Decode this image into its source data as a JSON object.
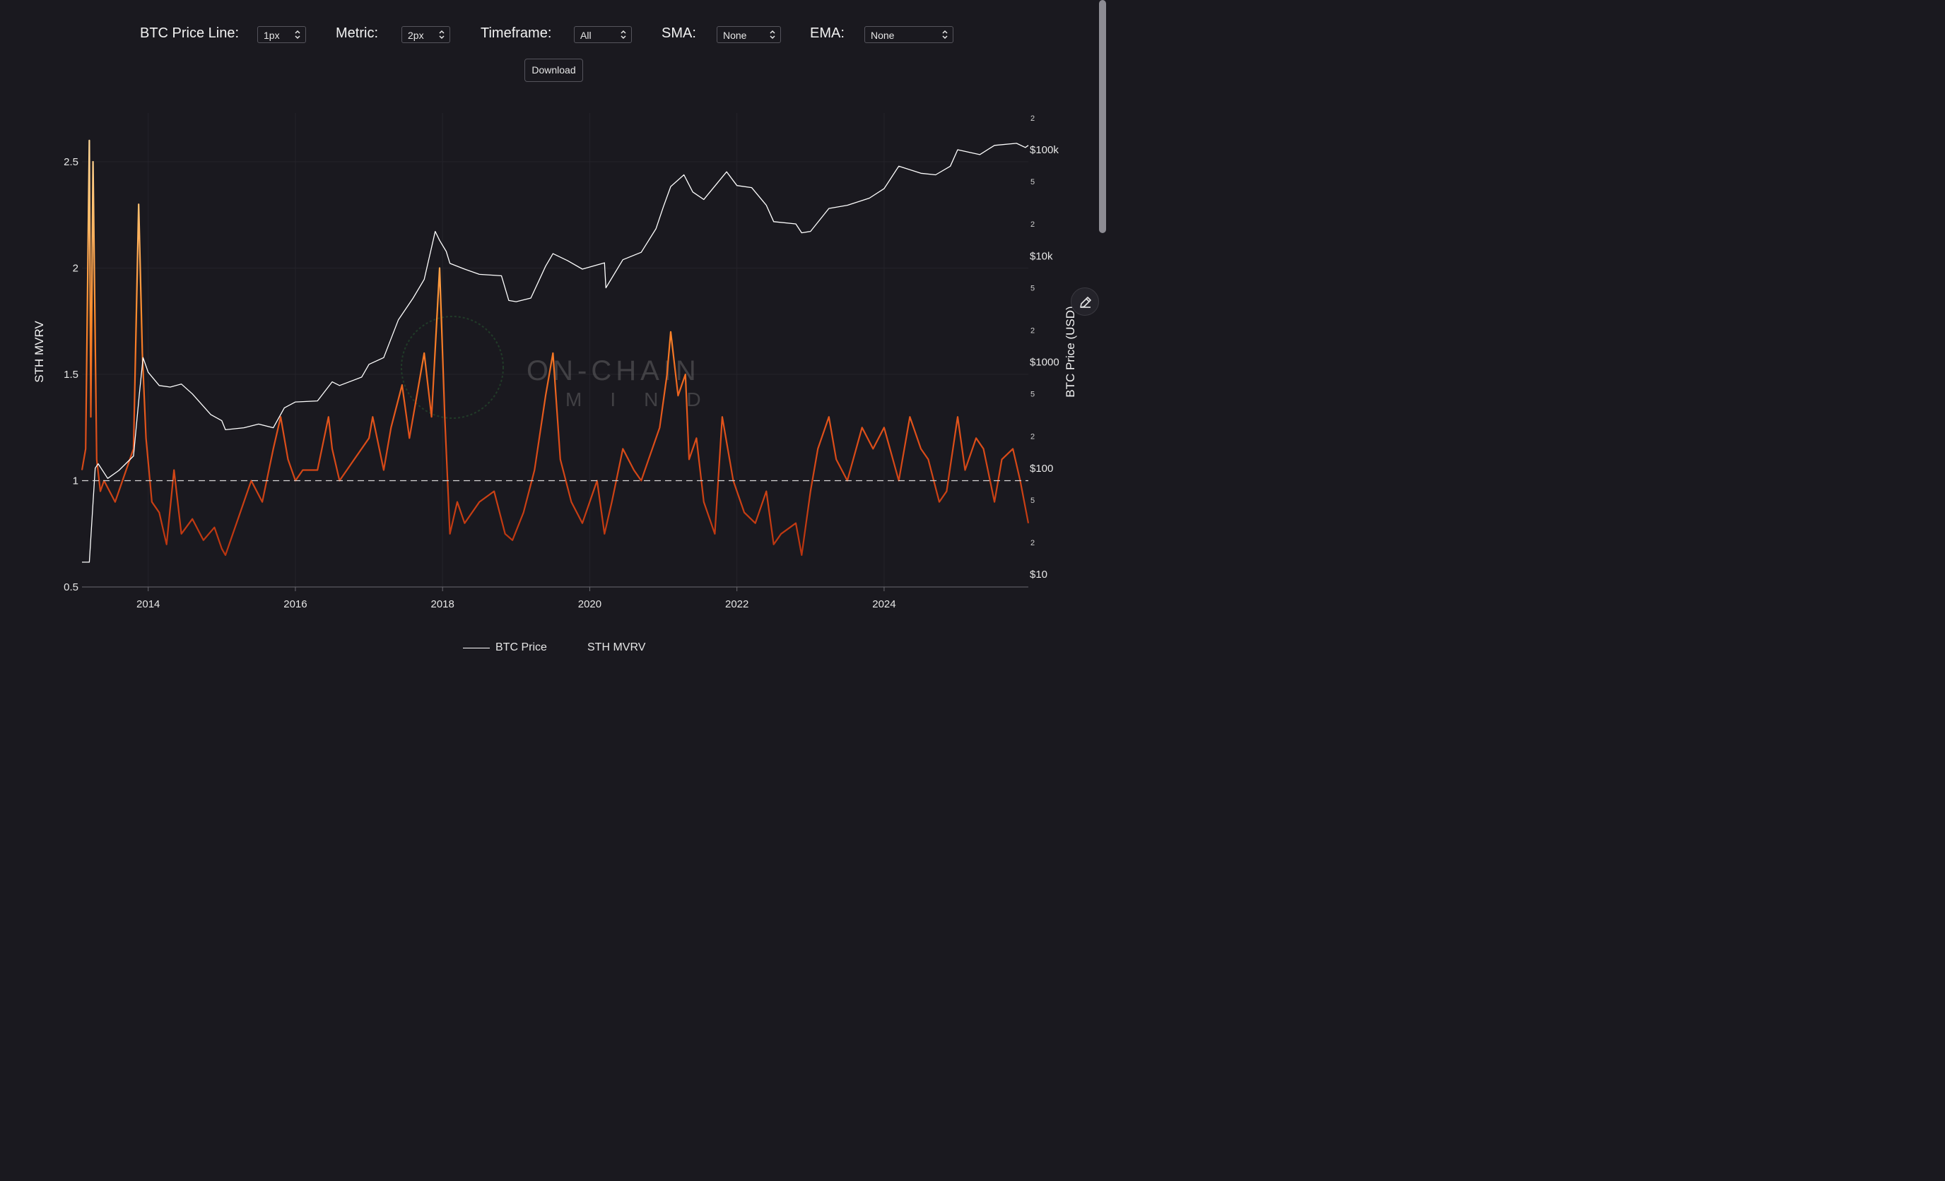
{
  "controls": {
    "btc_price_line": {
      "label": "BTC Price Line:",
      "value": "1px"
    },
    "metric": {
      "label": "Metric:",
      "value": "2px"
    },
    "timeframe": {
      "label": "Timeframe:",
      "value": "All"
    },
    "sma": {
      "label": "SMA:",
      "value": "None"
    },
    "ema": {
      "label": "EMA:",
      "value": "None"
    },
    "download_label": "Download"
  },
  "watermark": {
    "line1": "ON-CHAIN",
    "line2": "MIND"
  },
  "legend": {
    "price": "BTC Price",
    "metric": "STH MVRV"
  },
  "colors": {
    "background": "#1a191f",
    "price_line": "#ffffff",
    "metric_low": "#cc3a10",
    "metric_mid": "#ff7a20",
    "metric_high": "#ffd08a",
    "grid": "#24232a"
  },
  "icons": {
    "edit": "pencil-icon",
    "select": "updown-chevron-icon"
  },
  "chart_data": {
    "type": "line",
    "xlabel": "",
    "ylabel_left": "STH MVRV",
    "ylabel_right": "BTC Price (USD)",
    "x_ticks": [
      "2014",
      "2016",
      "2018",
      "2020",
      "2022",
      "2024"
    ],
    "y_left_ticks": [
      "0.5",
      "1",
      "1.5",
      "2",
      "2.5"
    ],
    "y_left_range": [
      0.5,
      2.67
    ],
    "y_right_scale": "log",
    "y_right_range": [
      10,
      200000
    ],
    "y_right_major_ticks": [
      {
        "v": 10,
        "label": "$10"
      },
      {
        "v": 100,
        "label": "$100"
      },
      {
        "v": 1000,
        "label": "$1000"
      },
      {
        "v": 10000,
        "label": "$10k"
      },
      {
        "v": 100000,
        "label": "$100k"
      }
    ],
    "y_right_minor_ticks": [
      {
        "v": 20,
        "label": "2"
      },
      {
        "v": 50,
        "label": "5"
      },
      {
        "v": 200,
        "label": "2"
      },
      {
        "v": 500,
        "label": "5"
      },
      {
        "v": 2000,
        "label": "2"
      },
      {
        "v": 5000,
        "label": "5"
      },
      {
        "v": 20000,
        "label": "2"
      },
      {
        "v": 50000,
        "label": "5"
      },
      {
        "v": 200000,
        "label": "2"
      }
    ],
    "reference_line": {
      "y": 1,
      "style": "dashed"
    },
    "series": [
      {
        "name": "BTC Price",
        "axis": "right",
        "x": [
          2013.1,
          2013.2,
          2013.25,
          2013.28,
          2013.32,
          2013.45,
          2013.6,
          2013.8,
          2013.88,
          2013.93,
          2014.0,
          2014.15,
          2014.3,
          2014.45,
          2014.6,
          2014.85,
          2015.0,
          2015.05,
          2015.3,
          2015.5,
          2015.7,
          2015.85,
          2016.0,
          2016.3,
          2016.5,
          2016.6,
          2016.9,
          2017.0,
          2017.2,
          2017.4,
          2017.6,
          2017.75,
          2017.9,
          2017.96,
          2018.05,
          2018.1,
          2018.3,
          2018.5,
          2018.8,
          2018.9,
          2019.0,
          2019.2,
          2019.4,
          2019.5,
          2019.7,
          2019.9,
          2020.2,
          2020.22,
          2020.45,
          2020.7,
          2020.9,
          2021.0,
          2021.1,
          2021.28,
          2021.4,
          2021.55,
          2021.86,
          2022.0,
          2022.2,
          2022.4,
          2022.5,
          2022.8,
          2022.88,
          2023.0,
          2023.25,
          2023.5,
          2023.8,
          2024.0,
          2024.2,
          2024.5,
          2024.7,
          2024.9,
          2025.0,
          2025.3,
          2025.5,
          2025.8,
          2025.92,
          2025.96
        ],
        "values": [
          13,
          13,
          47,
          100,
          110,
          80,
          95,
          130,
          500,
          1100,
          800,
          600,
          580,
          620,
          500,
          320,
          280,
          230,
          240,
          260,
          240,
          370,
          420,
          430,
          650,
          600,
          720,
          950,
          1100,
          2500,
          4000,
          6000,
          17000,
          14000,
          11000,
          8500,
          7500,
          6700,
          6500,
          3800,
          3700,
          4000,
          8000,
          10500,
          9000,
          7500,
          8600,
          5000,
          9200,
          10800,
          18000,
          29000,
          45000,
          58000,
          40000,
          34000,
          62000,
          46000,
          44000,
          30000,
          21000,
          20000,
          16500,
          17000,
          28000,
          30000,
          35000,
          43000,
          70000,
          60000,
          58000,
          70000,
          100000,
          90000,
          110000,
          115000,
          105000,
          110000
        ]
      },
      {
        "name": "STH MVRV",
        "axis": "left",
        "x": [
          2013.1,
          2013.15,
          2013.2,
          2013.22,
          2013.25,
          2013.3,
          2013.35,
          2013.4,
          2013.55,
          2013.7,
          2013.8,
          2013.87,
          2013.92,
          2013.97,
          2014.05,
          2014.15,
          2014.25,
          2014.35,
          2014.45,
          2014.6,
          2014.75,
          2014.9,
          2015.0,
          2015.05,
          2015.25,
          2015.4,
          2015.55,
          2015.7,
          2015.8,
          2015.9,
          2016.0,
          2016.1,
          2016.3,
          2016.45,
          2016.5,
          2016.6,
          2016.8,
          2017.0,
          2017.05,
          2017.2,
          2017.3,
          2017.45,
          2017.55,
          2017.75,
          2017.85,
          2017.96,
          2018.03,
          2018.1,
          2018.2,
          2018.3,
          2018.5,
          2018.7,
          2018.85,
          2018.95,
          2019.1,
          2019.25,
          2019.4,
          2019.5,
          2019.6,
          2019.75,
          2019.9,
          2020.1,
          2020.2,
          2020.3,
          2020.45,
          2020.6,
          2020.7,
          2020.8,
          2020.95,
          2021.05,
          2021.1,
          2021.2,
          2021.3,
          2021.35,
          2021.45,
          2021.55,
          2021.7,
          2021.8,
          2021.95,
          2022.1,
          2022.25,
          2022.4,
          2022.5,
          2022.6,
          2022.8,
          2022.88,
          2023.0,
          2023.1,
          2023.25,
          2023.35,
          2023.5,
          2023.7,
          2023.85,
          2024.0,
          2024.2,
          2024.35,
          2024.5,
          2024.6,
          2024.75,
          2024.85,
          2025.0,
          2025.1,
          2025.25,
          2025.35,
          2025.5,
          2025.6,
          2025.75,
          2025.85,
          2025.96
        ],
        "values": [
          1.05,
          1.15,
          2.6,
          1.3,
          2.5,
          1.1,
          0.95,
          1.0,
          0.9,
          1.05,
          1.15,
          2.3,
          1.6,
          1.2,
          0.9,
          0.85,
          0.7,
          1.05,
          0.75,
          0.82,
          0.72,
          0.78,
          0.68,
          0.65,
          0.85,
          1.0,
          0.9,
          1.15,
          1.3,
          1.1,
          1.0,
          1.05,
          1.05,
          1.3,
          1.15,
          1.0,
          1.1,
          1.2,
          1.3,
          1.05,
          1.25,
          1.45,
          1.2,
          1.6,
          1.3,
          2.0,
          1.3,
          0.75,
          0.9,
          0.8,
          0.9,
          0.95,
          0.75,
          0.72,
          0.85,
          1.05,
          1.4,
          1.6,
          1.1,
          0.9,
          0.8,
          1.0,
          0.75,
          0.9,
          1.15,
          1.05,
          1.0,
          1.1,
          1.25,
          1.5,
          1.7,
          1.4,
          1.5,
          1.1,
          1.2,
          0.9,
          0.75,
          1.3,
          1.0,
          0.85,
          0.8,
          0.95,
          0.7,
          0.75,
          0.8,
          0.65,
          0.95,
          1.15,
          1.3,
          1.1,
          1.0,
          1.25,
          1.15,
          1.25,
          1.0,
          1.3,
          1.15,
          1.1,
          0.9,
          0.95,
          1.3,
          1.05,
          1.2,
          1.15,
          0.9,
          1.1,
          1.15,
          1.0,
          0.8
        ]
      }
    ]
  }
}
